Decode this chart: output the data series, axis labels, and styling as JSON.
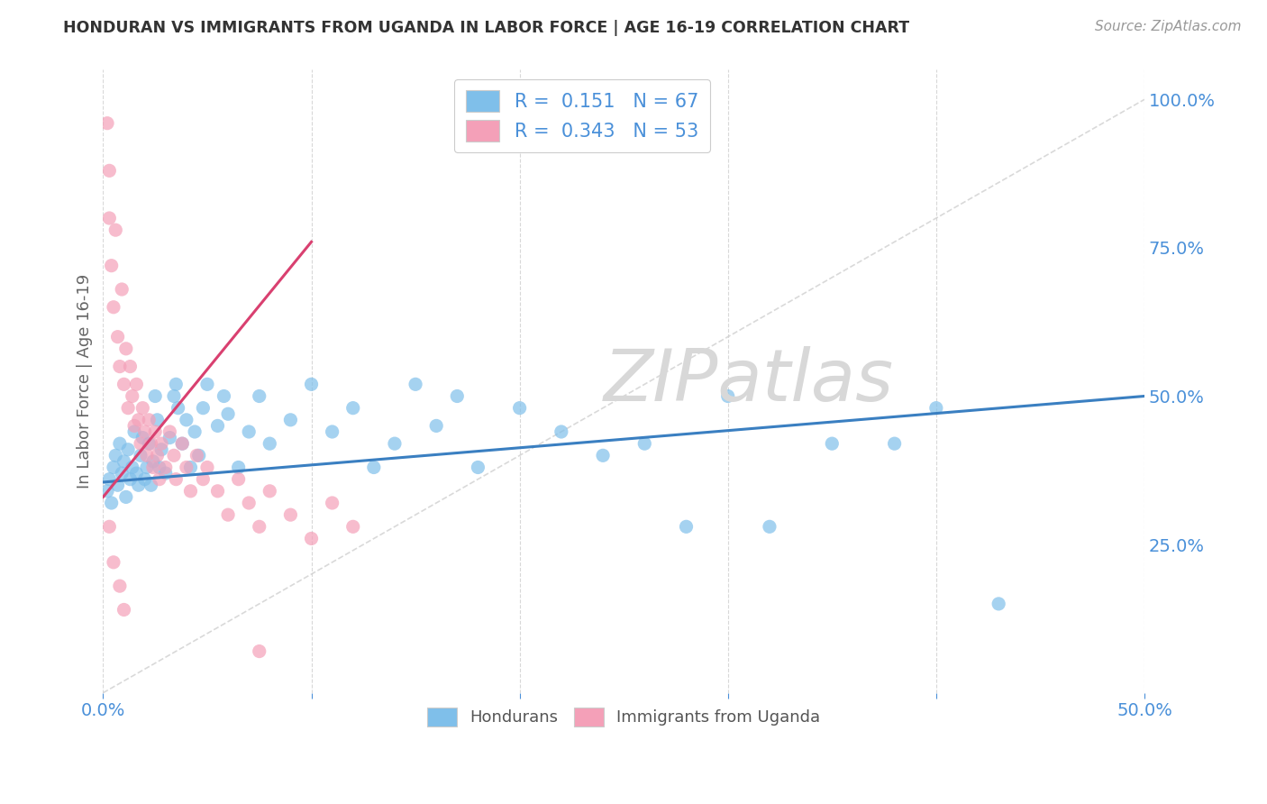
{
  "title": "HONDURAN VS IMMIGRANTS FROM UGANDA IN LABOR FORCE | AGE 16-19 CORRELATION CHART",
  "source": "Source: ZipAtlas.com",
  "ylabel": "In Labor Force | Age 16-19",
  "xlim": [
    0.0,
    0.5
  ],
  "ylim": [
    0.0,
    1.05
  ],
  "blue_color": "#7fbfea",
  "pink_color": "#f4a0b8",
  "blue_line_color": "#3a7fc1",
  "pink_line_color": "#d94070",
  "diag_line_color": "#d0d0d0",
  "R_blue": 0.151,
  "N_blue": 67,
  "R_pink": 0.343,
  "N_pink": 53,
  "watermark": "ZIPatlas",
  "background_color": "#ffffff",
  "grid_color": "#d8d8d8",
  "blue_scatter": [
    [
      0.002,
      0.34
    ],
    [
      0.003,
      0.36
    ],
    [
      0.004,
      0.32
    ],
    [
      0.005,
      0.38
    ],
    [
      0.006,
      0.4
    ],
    [
      0.007,
      0.35
    ],
    [
      0.008,
      0.42
    ],
    [
      0.009,
      0.37
    ],
    [
      0.01,
      0.39
    ],
    [
      0.011,
      0.33
    ],
    [
      0.012,
      0.41
    ],
    [
      0.013,
      0.36
    ],
    [
      0.014,
      0.38
    ],
    [
      0.015,
      0.44
    ],
    [
      0.016,
      0.37
    ],
    [
      0.017,
      0.35
    ],
    [
      0.018,
      0.4
    ],
    [
      0.019,
      0.43
    ],
    [
      0.02,
      0.36
    ],
    [
      0.021,
      0.38
    ],
    [
      0.022,
      0.42
    ],
    [
      0.023,
      0.35
    ],
    [
      0.024,
      0.39
    ],
    [
      0.025,
      0.5
    ],
    [
      0.026,
      0.46
    ],
    [
      0.027,
      0.38
    ],
    [
      0.028,
      0.41
    ],
    [
      0.03,
      0.37
    ],
    [
      0.032,
      0.43
    ],
    [
      0.034,
      0.5
    ],
    [
      0.035,
      0.52
    ],
    [
      0.036,
      0.48
    ],
    [
      0.038,
      0.42
    ],
    [
      0.04,
      0.46
    ],
    [
      0.042,
      0.38
    ],
    [
      0.044,
      0.44
    ],
    [
      0.046,
      0.4
    ],
    [
      0.048,
      0.48
    ],
    [
      0.05,
      0.52
    ],
    [
      0.055,
      0.45
    ],
    [
      0.058,
      0.5
    ],
    [
      0.06,
      0.47
    ],
    [
      0.065,
      0.38
    ],
    [
      0.07,
      0.44
    ],
    [
      0.075,
      0.5
    ],
    [
      0.08,
      0.42
    ],
    [
      0.09,
      0.46
    ],
    [
      0.1,
      0.52
    ],
    [
      0.11,
      0.44
    ],
    [
      0.12,
      0.48
    ],
    [
      0.13,
      0.38
    ],
    [
      0.14,
      0.42
    ],
    [
      0.15,
      0.52
    ],
    [
      0.16,
      0.45
    ],
    [
      0.17,
      0.5
    ],
    [
      0.18,
      0.38
    ],
    [
      0.2,
      0.48
    ],
    [
      0.22,
      0.44
    ],
    [
      0.24,
      0.4
    ],
    [
      0.26,
      0.42
    ],
    [
      0.28,
      0.28
    ],
    [
      0.3,
      0.5
    ],
    [
      0.32,
      0.28
    ],
    [
      0.35,
      0.42
    ],
    [
      0.38,
      0.42
    ],
    [
      0.4,
      0.48
    ],
    [
      0.43,
      0.15
    ]
  ],
  "pink_scatter": [
    [
      0.002,
      0.96
    ],
    [
      0.003,
      0.88
    ],
    [
      0.003,
      0.8
    ],
    [
      0.004,
      0.72
    ],
    [
      0.005,
      0.65
    ],
    [
      0.006,
      0.78
    ],
    [
      0.007,
      0.6
    ],
    [
      0.008,
      0.55
    ],
    [
      0.009,
      0.68
    ],
    [
      0.01,
      0.52
    ],
    [
      0.011,
      0.58
    ],
    [
      0.012,
      0.48
    ],
    [
      0.013,
      0.55
    ],
    [
      0.014,
      0.5
    ],
    [
      0.015,
      0.45
    ],
    [
      0.016,
      0.52
    ],
    [
      0.017,
      0.46
    ],
    [
      0.018,
      0.42
    ],
    [
      0.019,
      0.48
    ],
    [
      0.02,
      0.44
    ],
    [
      0.021,
      0.4
    ],
    [
      0.022,
      0.46
    ],
    [
      0.023,
      0.42
    ],
    [
      0.024,
      0.38
    ],
    [
      0.025,
      0.44
    ],
    [
      0.026,
      0.4
    ],
    [
      0.027,
      0.36
    ],
    [
      0.028,
      0.42
    ],
    [
      0.03,
      0.38
    ],
    [
      0.032,
      0.44
    ],
    [
      0.034,
      0.4
    ],
    [
      0.035,
      0.36
    ],
    [
      0.038,
      0.42
    ],
    [
      0.04,
      0.38
    ],
    [
      0.042,
      0.34
    ],
    [
      0.045,
      0.4
    ],
    [
      0.048,
      0.36
    ],
    [
      0.05,
      0.38
    ],
    [
      0.055,
      0.34
    ],
    [
      0.06,
      0.3
    ],
    [
      0.065,
      0.36
    ],
    [
      0.07,
      0.32
    ],
    [
      0.075,
      0.28
    ],
    [
      0.08,
      0.34
    ],
    [
      0.09,
      0.3
    ],
    [
      0.1,
      0.26
    ],
    [
      0.11,
      0.32
    ],
    [
      0.12,
      0.28
    ],
    [
      0.003,
      0.28
    ],
    [
      0.005,
      0.22
    ],
    [
      0.008,
      0.18
    ],
    [
      0.01,
      0.14
    ],
    [
      0.075,
      0.07
    ]
  ]
}
